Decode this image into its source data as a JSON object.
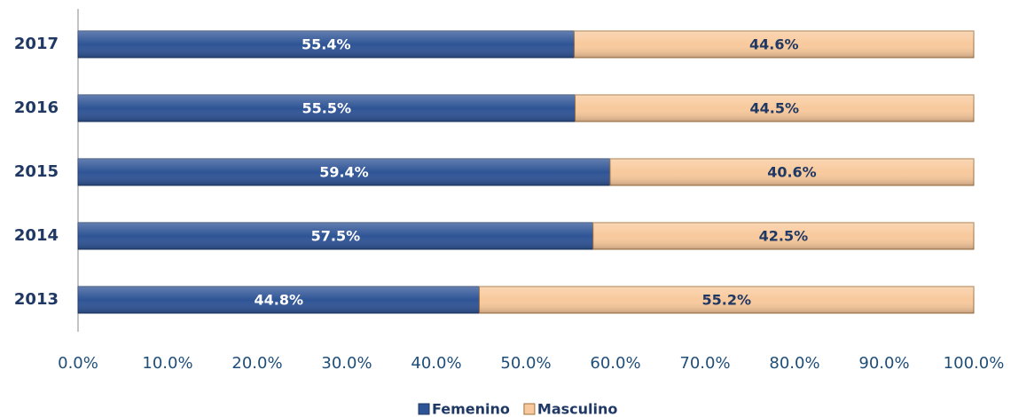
{
  "chart_data": {
    "type": "stacked_barh",
    "categories": [
      "2017",
      "2016",
      "2015",
      "2014",
      "2013"
    ],
    "series": [
      {
        "name": "Femenino",
        "color": "#2f5496",
        "values": [
          55.4,
          55.5,
          59.4,
          57.5,
          44.8
        ],
        "value_labels": [
          "55.4%",
          "55.5%",
          "59.4%",
          "57.5%",
          "44.8%"
        ]
      },
      {
        "name": "Masculino",
        "color": "#f8c99c",
        "values": [
          44.6,
          44.5,
          40.6,
          42.5,
          55.2
        ],
        "value_labels": [
          "44.6%",
          "44.5%",
          "40.6%",
          "42.5%",
          "55.2%"
        ]
      }
    ],
    "xlim": [
      0,
      100
    ],
    "xticks": [
      {
        "value": 0,
        "label": "0.0%"
      },
      {
        "value": 10,
        "label": "10.0%"
      },
      {
        "value": 20,
        "label": "20.0%"
      },
      {
        "value": 30,
        "label": "30.0%"
      },
      {
        "value": 40,
        "label": "40.0%"
      },
      {
        "value": 50,
        "label": "50.0%"
      },
      {
        "value": 60,
        "label": "60.0%"
      },
      {
        "value": 70,
        "label": "70.0%"
      },
      {
        "value": 80,
        "label": "80.0%"
      },
      {
        "value": 90,
        "label": "90.0%"
      },
      {
        "value": 100,
        "label": "100.0%"
      }
    ],
    "legend": "bottom"
  }
}
